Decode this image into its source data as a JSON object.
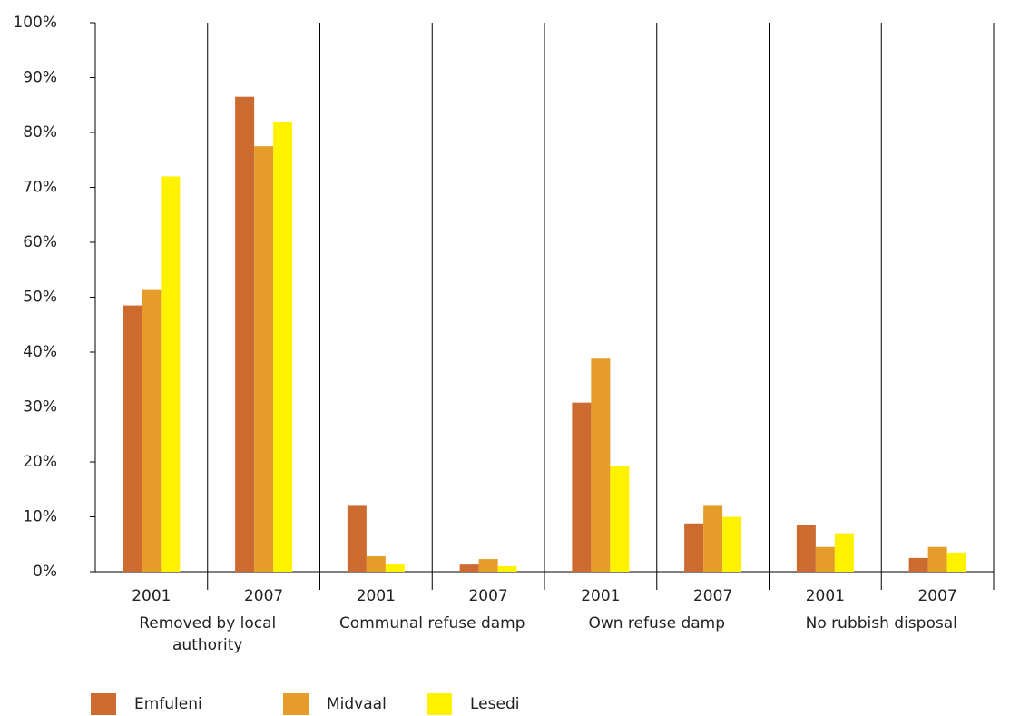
{
  "chart_data": {
    "type": "bar",
    "categories": [
      "2001",
      "2007",
      "2001",
      "2007",
      "2001",
      "2007",
      "2001",
      "2007"
    ],
    "group_labels": [
      "Removed by local authority",
      "Communal refuse damp",
      "Own refuse damp",
      "No rubbish disposal"
    ],
    "series": [
      {
        "name": "Emfuleni",
        "color": "#cd6a30",
        "values": [
          48.5,
          86.5,
          12,
          1.3,
          30.8,
          8.8,
          8.6,
          2.5
        ]
      },
      {
        "name": "Midvaal",
        "color": "#e59c28",
        "values": [
          51.3,
          77.5,
          2.8,
          2.3,
          38.8,
          12,
          4.5,
          4.5
        ]
      },
      {
        "name": "Lesedi",
        "color": "#fff200",
        "values": [
          72,
          82,
          1.5,
          1,
          19.2,
          10,
          7,
          3.5
        ]
      }
    ],
    "ylim": [
      0,
      100
    ],
    "yticks": [
      {
        "value": 0,
        "label": "0%"
      },
      {
        "value": 10,
        "label": "10%"
      },
      {
        "value": 20,
        "label": "20%"
      },
      {
        "value": 30,
        "label": "30%"
      },
      {
        "value": 40,
        "label": "40%"
      },
      {
        "value": 50,
        "label": "50%"
      },
      {
        "value": 60,
        "label": "60%"
      },
      {
        "value": 70,
        "label": "70%"
      },
      {
        "value": 80,
        "label": "80%"
      },
      {
        "value": 90,
        "label": "90%"
      },
      {
        "value": 100,
        "label": "100%"
      }
    ],
    "grid": true
  }
}
